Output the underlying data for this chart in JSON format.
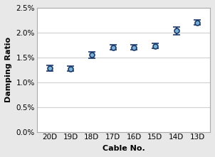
{
  "categories": [
    "20D",
    "19D",
    "18D",
    "17D",
    "16D",
    "15D",
    "14D",
    "13D"
  ],
  "means": [
    0.0128,
    0.0127,
    0.0155,
    0.017,
    0.017,
    0.0173,
    0.0204,
    0.022
  ],
  "errors": [
    0.0006,
    0.0005,
    0.0006,
    0.0005,
    0.0005,
    0.0005,
    0.0008,
    0.0005
  ],
  "marker_color": "#1b3a6b",
  "marker_face": "#7ab0d4",
  "xlabel": "Cable No.",
  "ylabel": "Damping Ratio",
  "ylim": [
    0.0,
    0.025
  ],
  "yticks": [
    0.0,
    0.005,
    0.01,
    0.015,
    0.02,
    0.025
  ],
  "ytick_labels": [
    "0.0%",
    "0.5%",
    "1.0%",
    "1.5%",
    "2.0%",
    "2.5%"
  ],
  "plot_bg_color": "#ffffff",
  "fig_bg_color": "#e8e8e8",
  "grid_color": "#d0d0d0",
  "label_fontsize": 8,
  "tick_fontsize": 7.5
}
